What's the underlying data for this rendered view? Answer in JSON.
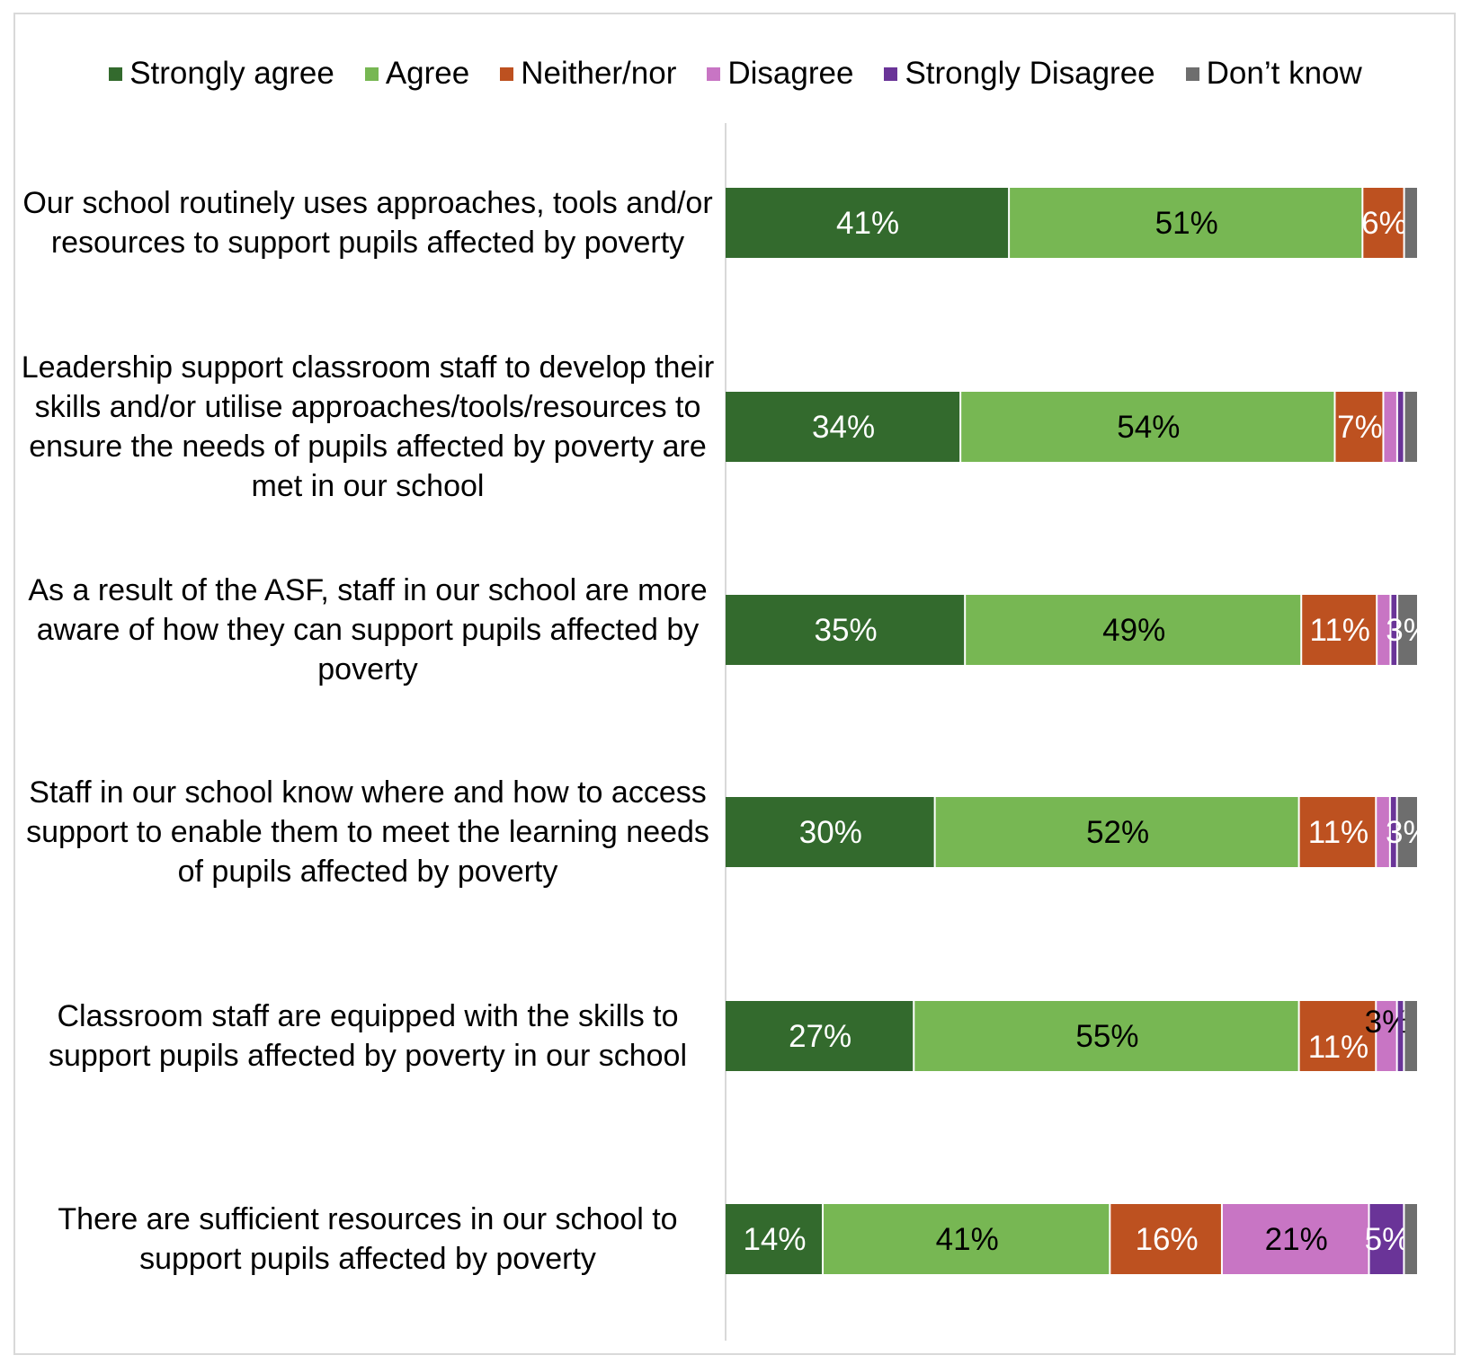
{
  "chart_data": {
    "type": "bar",
    "orientation": "horizontal-stacked-100",
    "legend_position": "top",
    "grid": false,
    "xlim": [
      0,
      100
    ],
    "categories": [
      "Our school routinely uses approaches, tools and/or resources to support pupils affected by poverty",
      "Leadership support classroom staff to develop their skills and/or utilise approaches/tools/resources to ensure the needs of pupils affected by poverty are met in our school",
      "As a result of the ASF, staff in our school are more aware of how they can support pupils affected by poverty",
      "Staff in our school know where and how to access support to enable them to meet the learning needs of pupils affected by poverty",
      "Classroom staff are equipped with the skills to support pupils affected by poverty in our school",
      "There are sufficient resources in our school to support pupils affected by poverty"
    ],
    "series": [
      {
        "name": "Strongly agree",
        "color": "#336A2D",
        "values": [
          41,
          34,
          35,
          30,
          27,
          14
        ],
        "labels": [
          "41%",
          "34%",
          "35%",
          "30%",
          "27%",
          "14%"
        ]
      },
      {
        "name": "Agree",
        "color": "#77B753",
        "values": [
          51,
          54,
          49,
          52,
          55,
          41
        ],
        "labels": [
          "51%",
          "54%",
          "49%",
          "52%",
          "55%",
          "41%"
        ]
      },
      {
        "name": "Neither/nor",
        "color": "#BD5120",
        "values": [
          6,
          7,
          11,
          11,
          11,
          16
        ],
        "labels": [
          "6%",
          "7%",
          "11%",
          "11%",
          "11%",
          "16%"
        ]
      },
      {
        "name": "Disagree",
        "color": "#C875C4",
        "values": [
          0,
          2,
          2,
          2,
          3,
          21
        ],
        "labels": [
          "",
          "",
          "",
          "",
          "3%",
          "21%"
        ]
      },
      {
        "name": "Strongly Disagree",
        "color": "#6A3498",
        "values": [
          0,
          1,
          1,
          1,
          1,
          5
        ],
        "labels": [
          "",
          "",
          "",
          "",
          "",
          "5%"
        ]
      },
      {
        "name": "Don’t know",
        "color": "#6E6E6E",
        "values": [
          2,
          2,
          3,
          3,
          2,
          2
        ],
        "labels": [
          "",
          "",
          "3%",
          "3%",
          "",
          ""
        ]
      }
    ]
  }
}
